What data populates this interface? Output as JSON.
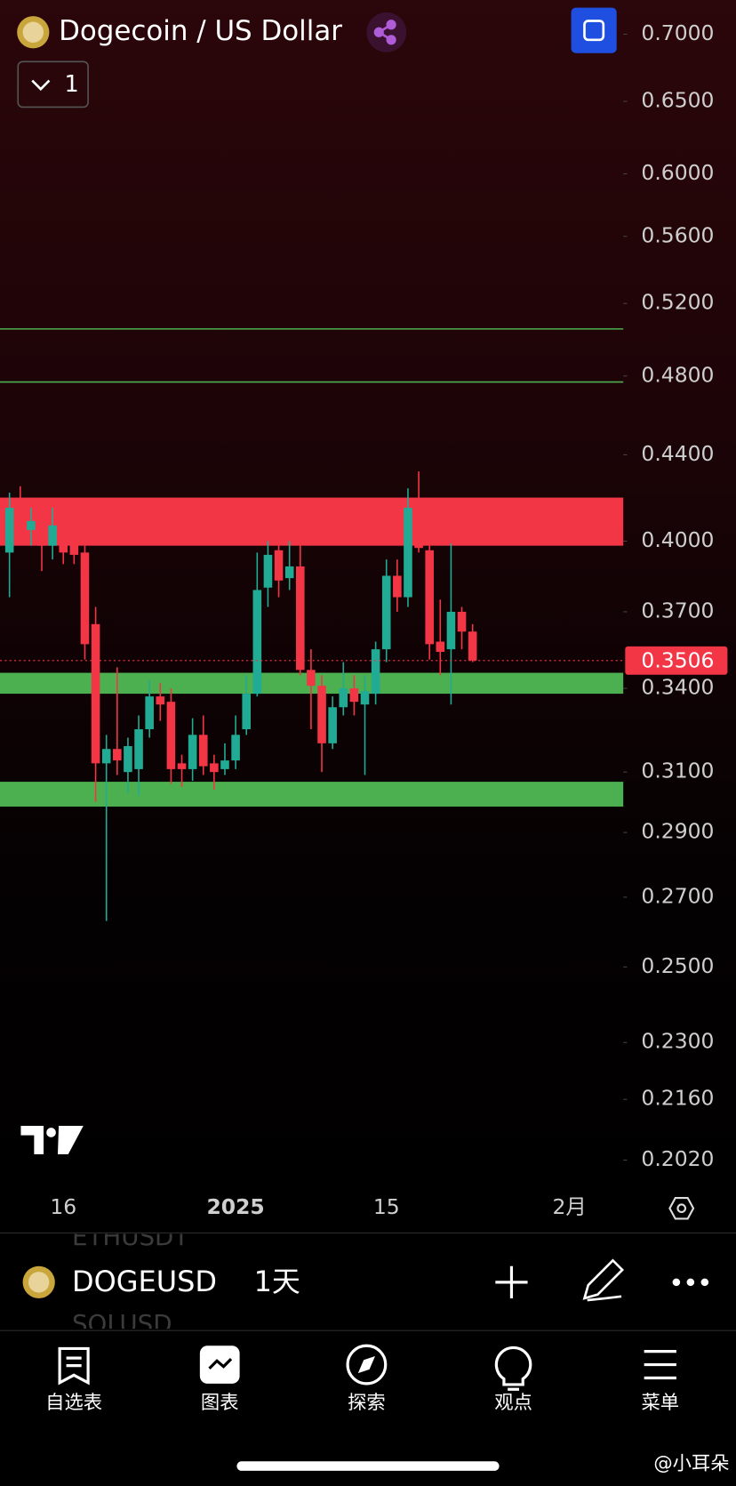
{
  "header": {
    "title": "Dogecoin / US Dollar",
    "interval": "1"
  },
  "chart_data": {
    "type": "candlestick",
    "categories": [
      null,
      null,
      null,
      null,
      null,
      "16",
      null,
      null,
      null,
      null,
      null,
      null,
      null,
      null,
      null,
      null,
      null,
      null,
      null,
      null,
      null,
      "2025",
      null,
      null,
      null,
      null,
      null,
      null,
      null,
      null,
      null,
      null,
      null,
      null,
      null,
      "15",
      null,
      null,
      null,
      null,
      null,
      null,
      null,
      null,
      null,
      null,
      null,
      null,
      null,
      null,
      null,
      null,
      "2月"
    ],
    "open": [
      0.395,
      0.415,
      0.405,
      0.41,
      0.398,
      0.4,
      0.399,
      0.395,
      0.365,
      0.313,
      0.318,
      0.31,
      0.311,
      0.325,
      0.337,
      0.335,
      0.313,
      0.311,
      0.323,
      0.313,
      0.311,
      0.314,
      0.325,
      0.338,
      0.38,
      0.396,
      0.384,
      0.389,
      0.347,
      0.341,
      0.32,
      0.333,
      0.34,
      0.334,
      0.338,
      0.355,
      0.385,
      0.376,
      0.415,
      0.396,
      0.358,
      0.355,
      0.37,
      0.362,
      null,
      null,
      null,
      null,
      null,
      null,
      null,
      null,
      null
    ],
    "high": [
      0.422,
      0.425,
      0.415,
      0.415,
      0.415,
      0.403,
      0.401,
      0.398,
      0.372,
      0.323,
      0.348,
      0.322,
      0.33,
      0.343,
      0.342,
      0.34,
      0.316,
      0.329,
      0.33,
      0.316,
      0.32,
      0.33,
      0.345,
      0.395,
      0.4,
      0.4,
      0.4,
      0.4,
      0.355,
      0.345,
      0.337,
      0.35,
      0.345,
      0.345,
      0.358,
      0.392,
      0.392,
      0.424,
      0.432,
      0.4,
      0.375,
      0.399,
      0.372,
      0.365,
      null,
      null,
      null,
      null,
      null,
      null,
      null,
      null,
      null
    ],
    "low": [
      0.376,
      0.405,
      0.398,
      0.387,
      0.392,
      0.39,
      0.39,
      0.351,
      0.3,
      0.263,
      0.309,
      0.303,
      0.302,
      0.322,
      0.328,
      0.306,
      0.305,
      0.307,
      0.309,
      0.304,
      0.309,
      0.311,
      0.323,
      0.337,
      0.372,
      0.376,
      0.379,
      0.345,
      0.325,
      0.31,
      0.318,
      0.33,
      0.33,
      0.309,
      0.334,
      0.35,
      0.37,
      0.372,
      0.395,
      0.351,
      0.345,
      0.334,
      0.355,
      0.35,
      null,
      null,
      null,
      null,
      null,
      null,
      null,
      null,
      null
    ],
    "close": [
      0.415,
      0.412,
      0.409,
      0.398,
      0.407,
      0.395,
      0.394,
      0.357,
      0.313,
      0.318,
      0.314,
      0.319,
      0.325,
      0.337,
      0.334,
      0.311,
      0.311,
      0.323,
      0.312,
      0.31,
      0.314,
      0.323,
      0.338,
      0.379,
      0.394,
      0.383,
      0.389,
      0.347,
      0.341,
      0.32,
      0.333,
      0.34,
      0.335,
      0.339,
      0.355,
      0.385,
      0.376,
      0.415,
      0.397,
      0.357,
      0.354,
      0.37,
      0.362,
      0.3506,
      null,
      null,
      null,
      null,
      null,
      null,
      null,
      null,
      null
    ],
    "up_color": "#22ab94",
    "down_color": "#f23645",
    "ylim": [
      0.1966,
      0.7269
    ],
    "log_scale": true,
    "yticks": [
      {
        "value": 0.7,
        "label": "0.7000"
      },
      {
        "value": 0.65,
        "label": "0.6500"
      },
      {
        "value": 0.6,
        "label": "0.6000"
      },
      {
        "value": 0.56,
        "label": "0.5600"
      },
      {
        "value": 0.52,
        "label": "0.5200"
      },
      {
        "value": 0.48,
        "label": "0.4800"
      },
      {
        "value": 0.44,
        "label": "0.4400"
      },
      {
        "value": 0.4,
        "label": "0.4000"
      },
      {
        "value": 0.37,
        "label": "0.3700"
      },
      {
        "value": 0.34,
        "label": "0.3400"
      },
      {
        "value": 0.31,
        "label": "0.3100"
      },
      {
        "value": 0.29,
        "label": "0.2900"
      },
      {
        "value": 0.27,
        "label": "0.2700"
      },
      {
        "value": 0.25,
        "label": "0.2500"
      },
      {
        "value": 0.23,
        "label": "0.2300"
      },
      {
        "value": 0.216,
        "label": "0.2160"
      },
      {
        "value": 0.202,
        "label": "0.2020"
      }
    ],
    "zones": [
      {
        "from": 0.398,
        "to": 0.4197,
        "color": "#f23645"
      },
      {
        "from": 0.338,
        "to": 0.3459,
        "color": "#4caf50"
      },
      {
        "from": 0.2984,
        "to": 0.3067,
        "color": "#4caf50"
      }
    ],
    "levels": [
      {
        "value": 0.5056,
        "color": "#4caf50"
      },
      {
        "value": 0.4768,
        "color": "#4caf50"
      }
    ],
    "last_price": {
      "value": 0.3506,
      "label": "0.3506",
      "color": "#f23645"
    }
  },
  "toolbar": {
    "symbol": "DOGEUSD",
    "interval": "1天",
    "ghost_above": "ETHUSDT",
    "ghost_below": "SOLUSD"
  },
  "nav": [
    "自选表",
    "图表",
    "探索",
    "观点",
    "菜单"
  ],
  "watermark": "@小耳朵"
}
